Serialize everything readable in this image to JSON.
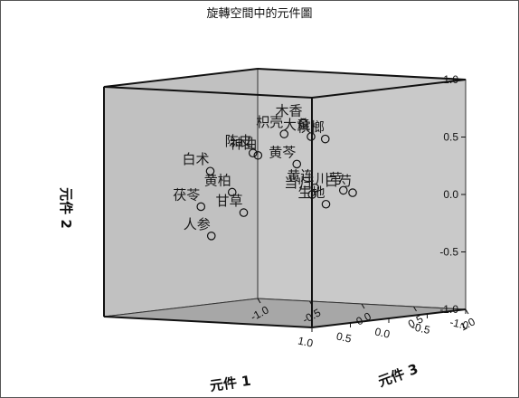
{
  "chart_data": {
    "type": "scatter",
    "title": "旋轉空間中的元件圖",
    "xlabel": "元件 1",
    "ylabel": "元件 2",
    "zlabel": "元件 3",
    "xlim": [
      -1.0,
      1.0
    ],
    "ylim": [
      -1.0,
      1.0
    ],
    "zlim": [
      -1.0,
      1.0
    ],
    "x_ticks": [
      "-1.0",
      "-0.5",
      "0.0",
      "0.5",
      "1.0"
    ],
    "y_ticks": [
      "1.0",
      "0.5",
      "0.0",
      "-0.5",
      "-1.0"
    ],
    "z_ticks": [
      "1.0",
      "0.5",
      "0.0",
      "-0.5",
      "-1.0"
    ],
    "points": [
      {
        "label": "木香",
        "x": 0.3,
        "y": 0.7,
        "z": 0.4
      },
      {
        "label": "枳壳",
        "x": 0.55,
        "y": 0.62,
        "z": 0.4
      },
      {
        "label": "槟榔",
        "x": 0.15,
        "y": 0.55,
        "z": 0.5
      },
      {
        "label": "神曲",
        "x": 0.62,
        "y": 0.43,
        "z": 0.2
      },
      {
        "label": "大黄",
        "x": 0.2,
        "y": 0.57,
        "z": 0.4
      },
      {
        "label": "陈皮",
        "x": 0.55,
        "y": 0.44,
        "z": 0.1
      },
      {
        "label": "白术",
        "x": 0.7,
        "y": 0.28,
        "z": -0.2
      },
      {
        "label": "黄芩",
        "x": 0.25,
        "y": 0.33,
        "z": 0.3
      },
      {
        "label": "黄连",
        "x": 0.15,
        "y": 0.12,
        "z": 0.4
      },
      {
        "label": "黄柏",
        "x": 0.55,
        "y": 0.09,
        "z": -0.1
      },
      {
        "label": "茯苓",
        "x": 0.55,
        "y": -0.05,
        "z": -0.4
      },
      {
        "label": "当归",
        "x": 0.05,
        "y": 0.05,
        "z": 0.3
      },
      {
        "label": "生地",
        "x": -0.4,
        "y": -0.08,
        "z": 0.1
      },
      {
        "label": "川芎",
        "x": 0.05,
        "y": 0.1,
        "z": 0.6
      },
      {
        "label": "白芍",
        "x": 0.2,
        "y": 0.1,
        "z": 0.8
      },
      {
        "label": "人参",
        "x": 0.55,
        "y": -0.3,
        "z": -0.3
      },
      {
        "label": "甘草",
        "x": 0.4,
        "y": -0.1,
        "z": -0.1
      }
    ]
  }
}
